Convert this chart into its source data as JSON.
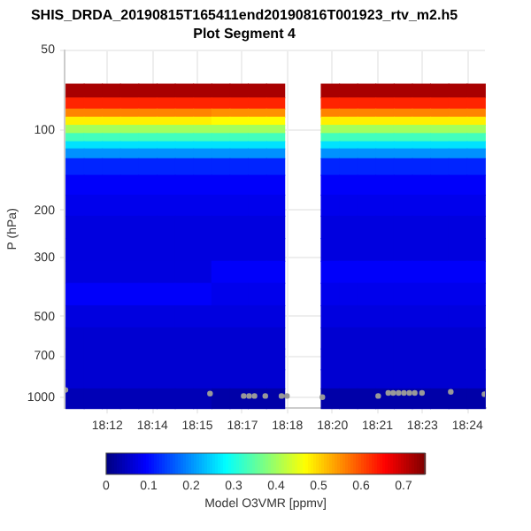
{
  "chart_data": {
    "type": "heatmap",
    "title": "SHIS_DRDA_20190815T165411end20190816T001923_rtv_m2.h5",
    "subtitle": "Plot Segment 4",
    "ylabel": "P (hPa)",
    "clabel": "Model O3VMR [ppmv]",
    "x": [
      18.1901,
      18.2002,
      18.2103,
      18.2204,
      18.2306,
      18.2407,
      18.2508,
      18.261,
      18.2711,
      18.2812,
      18.2914,
      18.3015,
      18.3116,
      18.3217,
      18.3319,
      18.342,
      18.3521,
      18.3622,
      18.3724,
      18.3825,
      18.3926,
      18.4028,
      18.4129
    ],
    "y": [
      71,
      80,
      86,
      92,
      99,
      106,
      114,
      120,
      135,
      160,
      190,
      230,
      280,
      340,
      410,
      500,
      600,
      720,
      860,
      1000
    ],
    "cells": [
      [
        0.72,
        0.72,
        0.72,
        0.72,
        0.72,
        0.72,
        0.72,
        0.72,
        0.72,
        0.72,
        0.72,
        0.72,
        null,
        null,
        0.72,
        0.72,
        0.72,
        0.72,
        0.72,
        0.72,
        0.72,
        0.72,
        0.72
      ],
      [
        0.63,
        0.63,
        0.63,
        0.63,
        0.63,
        0.63,
        0.63,
        0.63,
        0.63,
        0.63,
        0.63,
        0.63,
        null,
        null,
        0.63,
        0.63,
        0.63,
        0.63,
        0.63,
        0.63,
        0.63,
        0.63,
        0.63
      ],
      [
        0.56,
        0.56,
        0.56,
        0.56,
        0.56,
        0.56,
        0.56,
        0.56,
        0.55,
        0.55,
        0.55,
        0.55,
        null,
        null,
        0.56,
        0.56,
        0.56,
        0.56,
        0.56,
        0.56,
        0.56,
        0.56,
        0.56
      ],
      [
        0.48,
        0.48,
        0.48,
        0.48,
        0.48,
        0.48,
        0.48,
        0.48,
        0.47,
        0.47,
        0.47,
        0.47,
        null,
        null,
        0.48,
        0.48,
        0.48,
        0.48,
        0.48,
        0.48,
        0.48,
        0.48,
        0.48
      ],
      [
        0.4,
        0.4,
        0.4,
        0.4,
        0.4,
        0.4,
        0.4,
        0.4,
        0.4,
        0.4,
        0.4,
        0.4,
        null,
        null,
        0.4,
        0.4,
        0.4,
        0.4,
        0.4,
        0.4,
        0.4,
        0.4,
        0.4
      ],
      [
        0.33,
        0.33,
        0.33,
        0.33,
        0.33,
        0.33,
        0.33,
        0.33,
        0.33,
        0.33,
        0.33,
        0.33,
        null,
        null,
        0.33,
        0.33,
        0.33,
        0.33,
        0.33,
        0.33,
        0.33,
        0.33,
        0.33
      ],
      [
        0.26,
        0.26,
        0.26,
        0.26,
        0.26,
        0.26,
        0.26,
        0.26,
        0.26,
        0.26,
        0.26,
        0.26,
        null,
        null,
        0.26,
        0.26,
        0.26,
        0.26,
        0.26,
        0.26,
        0.26,
        0.26,
        0.26
      ],
      [
        0.2,
        0.2,
        0.2,
        0.2,
        0.2,
        0.2,
        0.2,
        0.2,
        0.2,
        0.2,
        0.2,
        0.2,
        null,
        null,
        0.2,
        0.2,
        0.2,
        0.2,
        0.2,
        0.2,
        0.2,
        0.2,
        0.2
      ],
      [
        0.12,
        0.12,
        0.12,
        0.12,
        0.12,
        0.12,
        0.12,
        0.12,
        0.12,
        0.12,
        0.12,
        0.12,
        null,
        null,
        0.12,
        0.12,
        0.12,
        0.12,
        0.12,
        0.12,
        0.12,
        0.12,
        0.12
      ],
      [
        0.09,
        0.09,
        0.09,
        0.09,
        0.09,
        0.09,
        0.09,
        0.09,
        0.09,
        0.09,
        0.09,
        0.09,
        null,
        null,
        0.09,
        0.09,
        0.09,
        0.09,
        0.09,
        0.09,
        0.09,
        0.09,
        0.09
      ],
      [
        0.08,
        0.08,
        0.08,
        0.08,
        0.08,
        0.08,
        0.08,
        0.08,
        0.08,
        0.08,
        0.08,
        0.08,
        null,
        null,
        0.08,
        0.08,
        0.08,
        0.08,
        0.08,
        0.08,
        0.08,
        0.08,
        0.08
      ],
      [
        0.07,
        0.07,
        0.07,
        0.07,
        0.07,
        0.07,
        0.07,
        0.07,
        0.07,
        0.07,
        0.07,
        0.07,
        null,
        null,
        0.07,
        0.07,
        0.07,
        0.07,
        0.07,
        0.07,
        0.07,
        0.07,
        0.07
      ],
      [
        0.07,
        0.07,
        0.07,
        0.07,
        0.07,
        0.07,
        0.07,
        0.07,
        0.07,
        0.07,
        0.07,
        0.07,
        null,
        null,
        0.07,
        0.07,
        0.07,
        0.07,
        0.07,
        0.07,
        0.07,
        0.07,
        0.07
      ],
      [
        0.07,
        0.07,
        0.07,
        0.07,
        0.07,
        0.07,
        0.07,
        0.07,
        0.09,
        0.09,
        0.09,
        0.09,
        null,
        null,
        0.09,
        0.09,
        0.09,
        0.09,
        0.09,
        0.09,
        0.09,
        0.09,
        0.09
      ],
      [
        0.09,
        0.09,
        0.09,
        0.09,
        0.09,
        0.09,
        0.09,
        0.09,
        0.08,
        0.08,
        0.08,
        0.08,
        null,
        null,
        0.08,
        0.08,
        0.08,
        0.08,
        0.08,
        0.08,
        0.08,
        0.08,
        0.08
      ],
      [
        0.07,
        0.07,
        0.07,
        0.07,
        0.07,
        0.07,
        0.07,
        0.07,
        0.07,
        0.07,
        0.07,
        0.07,
        null,
        null,
        0.07,
        0.07,
        0.07,
        0.07,
        0.07,
        0.07,
        0.07,
        0.07,
        0.07
      ],
      [
        0.06,
        0.06,
        0.06,
        0.06,
        0.06,
        0.06,
        0.06,
        0.06,
        0.06,
        0.06,
        0.06,
        0.06,
        null,
        null,
        0.06,
        0.06,
        0.06,
        0.06,
        0.06,
        0.06,
        0.06,
        0.06,
        0.06
      ],
      [
        0.06,
        0.06,
        0.06,
        0.06,
        0.06,
        0.06,
        0.06,
        0.06,
        0.06,
        0.06,
        0.06,
        0.06,
        null,
        null,
        0.06,
        0.06,
        0.06,
        0.06,
        0.06,
        0.06,
        0.06,
        0.06,
        0.06
      ],
      [
        0.06,
        0.06,
        0.06,
        0.06,
        0.06,
        0.06,
        0.06,
        0.06,
        0.06,
        0.06,
        0.06,
        0.06,
        null,
        null,
        0.06,
        0.06,
        0.06,
        0.06,
        0.06,
        0.06,
        0.06,
        0.06,
        0.06
      ],
      [
        0.04,
        0.04,
        0.04,
        0.04,
        0.04,
        0.04,
        0.04,
        0.04,
        0.03,
        0.03,
        0.03,
        0.03,
        null,
        null,
        0.03,
        0.03,
        0.03,
        0.03,
        0.03,
        0.03,
        0.03,
        0.03,
        0.03
      ]
    ],
    "clim": [
      0,
      0.75
    ],
    "cticks": [
      0,
      0.1,
      0.2,
      0.3,
      0.4,
      0.5,
      0.6,
      0.7
    ],
    "xlim": [
      18.185,
      18.418
    ],
    "xticks": [
      {
        "value": 18.2083,
        "label": "18:12"
      },
      {
        "value": 18.2333,
        "label": "18:14"
      },
      {
        "value": 18.2583,
        "label": "18:15"
      },
      {
        "value": 18.2833,
        "label": "18:17"
      },
      {
        "value": 18.3083,
        "label": "18:18"
      },
      {
        "value": 18.3333,
        "label": "18:20"
      },
      {
        "value": 18.3583,
        "label": "18:21"
      },
      {
        "value": 18.3833,
        "label": "18:23"
      },
      {
        "value": 18.4083,
        "label": "18:24"
      }
    ],
    "ylim": [
      1100,
      50
    ],
    "yticks": [
      50,
      100,
      200,
      300,
      500,
      700,
      1000
    ],
    "log": "y",
    "grid": true,
    "series": [
      {
        "type": "scatter",
        "color": "#999999",
        "marker": "circle",
        "x": [
          18.185,
          18.2653,
          18.284,
          18.287,
          18.29,
          18.296,
          18.305,
          18.308,
          18.3277,
          18.3587,
          18.3643,
          18.367,
          18.37,
          18.373,
          18.376,
          18.379,
          18.383,
          18.399,
          18.4177
        ],
        "values": [
          940,
          970,
          990,
          990,
          990,
          990,
          990,
          990,
          1000,
          990,
          965,
          965,
          965,
          965,
          965,
          965,
          965,
          955,
          975
        ]
      }
    ]
  }
}
